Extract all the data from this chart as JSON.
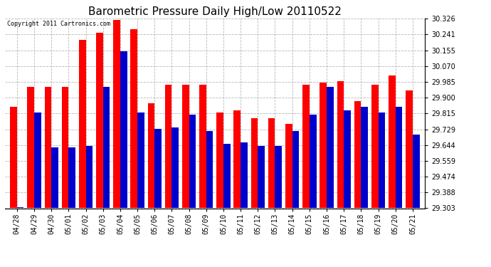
{
  "title": "Barometric Pressure Daily High/Low 20110522",
  "copyright_text": "Copyright 2011 Cartronics.com",
  "dates": [
    "04/28",
    "04/29",
    "04/30",
    "05/01",
    "05/02",
    "05/03",
    "05/04",
    "05/05",
    "05/06",
    "05/07",
    "05/08",
    "05/09",
    "05/10",
    "05/11",
    "05/12",
    "05/13",
    "05/14",
    "05/15",
    "05/16",
    "05/17",
    "05/18",
    "05/19",
    "05/20",
    "05/21"
  ],
  "highs": [
    29.85,
    29.96,
    29.96,
    29.96,
    30.21,
    30.25,
    30.32,
    30.27,
    29.87,
    29.97,
    29.97,
    29.97,
    29.82,
    29.83,
    29.79,
    29.79,
    29.76,
    29.97,
    29.98,
    29.99,
    29.88,
    29.97,
    30.02,
    29.94
  ],
  "lows": [
    29.31,
    29.82,
    29.63,
    29.63,
    29.64,
    29.96,
    30.15,
    29.82,
    29.73,
    29.74,
    29.81,
    29.72,
    29.65,
    29.66,
    29.64,
    29.64,
    29.72,
    29.81,
    29.96,
    29.83,
    29.85,
    29.82,
    29.85,
    29.7
  ],
  "high_color": "#ff0000",
  "low_color": "#0000cc",
  "background_color": "#ffffff",
  "plot_bg_color": "#ffffff",
  "grid_color": "#999999",
  "ylim_min": 29.303,
  "ylim_max": 30.326,
  "yticks": [
    29.303,
    29.388,
    29.474,
    29.559,
    29.644,
    29.729,
    29.815,
    29.9,
    29.985,
    30.07,
    30.155,
    30.241,
    30.326
  ],
  "bar_width": 0.4,
  "title_fontsize": 11,
  "tick_fontsize": 7,
  "ylabel_fontsize": 7
}
